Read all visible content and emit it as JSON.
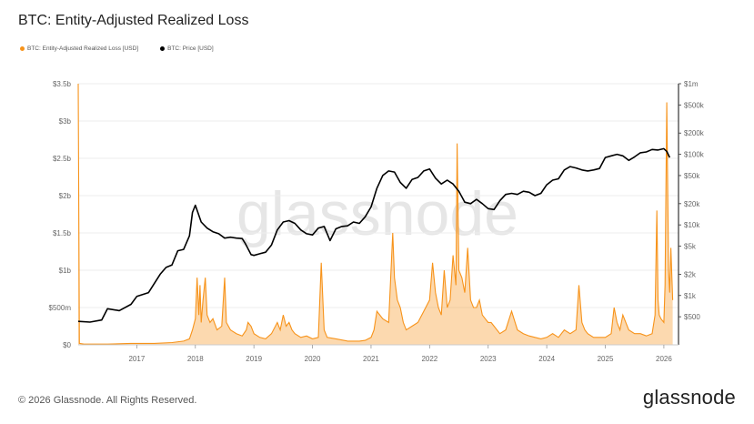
{
  "title": "BTC: Entity-Adjusted Realized Loss",
  "legend": {
    "loss": "BTC: Entity-Adjusted Realized Loss [USD]",
    "price": "BTC: Price [USD]"
  },
  "watermark": "glassnode",
  "footer": {
    "copyright": "© 2026 Glassnode. All Rights Reserved.",
    "brand": "glassnode"
  },
  "colors": {
    "loss": "#f7931a",
    "price": "#000000",
    "grid": "#eeeeee"
  },
  "chart_data": {
    "type": "line",
    "title": "BTC: Entity-Adjusted Realized Loss",
    "x_range": [
      2016.0,
      2026.25
    ],
    "x_ticks": [
      "2017",
      "2018",
      "2019",
      "2020",
      "2021",
      "2022",
      "2023",
      "2024",
      "2025",
      "2026"
    ],
    "left_axis": {
      "ylim": [
        0,
        3.5
      ],
      "unit": "billion USD",
      "ticks": [
        0,
        0.5,
        1,
        1.5,
        2,
        2.5,
        3,
        3.5
      ],
      "tick_labels": [
        "$0",
        "$500m",
        "$1b",
        "$1.5b",
        "$2b",
        "$2.5b",
        "$3b",
        "$3.5b"
      ]
    },
    "right_axis": {
      "scale": "log",
      "ylim": [
        200,
        1000000
      ],
      "ticks": [
        500,
        1000,
        2000,
        5000,
        10000,
        20000,
        50000,
        100000,
        200000,
        500000,
        1000000
      ],
      "tick_labels": [
        "$500",
        "$1k",
        "$2k",
        "$5k",
        "$10k",
        "$20k",
        "$50k",
        "$100k",
        "$200k",
        "$500k",
        "$1m"
      ]
    },
    "series": [
      {
        "name": "BTC: Entity-Adjusted Realized Loss [USD]",
        "axis": "left",
        "x": [
          2016.0,
          2016.02,
          2016.1,
          2016.5,
          2016.9,
          2017.3,
          2017.6,
          2017.8,
          2017.9,
          2017.95,
          2018.0,
          2018.03,
          2018.06,
          2018.08,
          2018.1,
          2018.13,
          2018.17,
          2018.2,
          2018.25,
          2018.3,
          2018.37,
          2018.45,
          2018.5,
          2018.53,
          2018.6,
          2018.7,
          2018.8,
          2018.87,
          2018.9,
          2018.95,
          2019.0,
          2019.1,
          2019.2,
          2019.3,
          2019.4,
          2019.45,
          2019.5,
          2019.55,
          2019.6,
          2019.65,
          2019.7,
          2019.8,
          2019.9,
          2020.0,
          2020.1,
          2020.15,
          2020.2,
          2020.25,
          2020.4,
          2020.6,
          2020.8,
          2020.9,
          2021.0,
          2021.05,
          2021.1,
          2021.2,
          2021.3,
          2021.37,
          2021.4,
          2021.45,
          2021.5,
          2021.55,
          2021.6,
          2021.7,
          2021.8,
          2021.9,
          2022.0,
          2022.05,
          2022.1,
          2022.15,
          2022.2,
          2022.25,
          2022.3,
          2022.35,
          2022.4,
          2022.45,
          2022.47,
          2022.5,
          2022.55,
          2022.6,
          2022.65,
          2022.7,
          2022.75,
          2022.8,
          2022.85,
          2022.9,
          2022.95,
          2023.0,
          2023.05,
          2023.1,
          2023.2,
          2023.3,
          2023.4,
          2023.5,
          2023.6,
          2023.7,
          2023.8,
          2023.9,
          2024.0,
          2024.1,
          2024.2,
          2024.3,
          2024.4,
          2024.5,
          2024.55,
          2024.6,
          2024.65,
          2024.7,
          2024.8,
          2024.9,
          2025.0,
          2025.1,
          2025.15,
          2025.2,
          2025.25,
          2025.3,
          2025.4,
          2025.5,
          2025.6,
          2025.7,
          2025.8,
          2025.85,
          2025.88,
          2025.9,
          2025.92,
          2025.95,
          2026.0,
          2026.02,
          2026.05,
          2026.08,
          2026.1,
          2026.12,
          2026.15
        ],
        "y": [
          3.5,
          0.02,
          0.01,
          0.01,
          0.02,
          0.02,
          0.03,
          0.05,
          0.08,
          0.2,
          0.35,
          0.9,
          0.4,
          0.8,
          0.3,
          0.6,
          0.9,
          0.4,
          0.3,
          0.35,
          0.2,
          0.25,
          0.9,
          0.3,
          0.2,
          0.15,
          0.12,
          0.2,
          0.3,
          0.25,
          0.15,
          0.1,
          0.08,
          0.15,
          0.3,
          0.2,
          0.4,
          0.25,
          0.3,
          0.2,
          0.15,
          0.1,
          0.12,
          0.08,
          0.1,
          1.1,
          0.2,
          0.1,
          0.08,
          0.05,
          0.05,
          0.06,
          0.1,
          0.2,
          0.45,
          0.35,
          0.3,
          1.5,
          0.9,
          0.6,
          0.5,
          0.3,
          0.2,
          0.25,
          0.3,
          0.45,
          0.6,
          1.1,
          0.7,
          0.5,
          0.4,
          1.0,
          0.5,
          0.6,
          1.2,
          0.8,
          2.7,
          1.0,
          0.9,
          0.7,
          1.3,
          0.6,
          0.5,
          0.5,
          0.6,
          0.4,
          0.35,
          0.3,
          0.3,
          0.25,
          0.15,
          0.2,
          0.45,
          0.2,
          0.15,
          0.12,
          0.1,
          0.08,
          0.1,
          0.15,
          0.1,
          0.2,
          0.15,
          0.2,
          0.8,
          0.3,
          0.2,
          0.15,
          0.1,
          0.1,
          0.1,
          0.15,
          0.5,
          0.3,
          0.2,
          0.4,
          0.2,
          0.15,
          0.15,
          0.12,
          0.15,
          0.4,
          1.8,
          0.6,
          0.4,
          0.35,
          0.3,
          0.8,
          3.25,
          1.0,
          0.7,
          1.3,
          0.6
        ]
      },
      {
        "name": "BTC: Price [USD]",
        "axis": "right",
        "x": [
          2016.0,
          2016.2,
          2016.4,
          2016.5,
          2016.7,
          2016.9,
          2017.0,
          2017.2,
          2017.4,
          2017.5,
          2017.6,
          2017.7,
          2017.8,
          2017.9,
          2017.95,
          2018.0,
          2018.1,
          2018.2,
          2018.3,
          2018.4,
          2018.5,
          2018.6,
          2018.7,
          2018.8,
          2018.85,
          2018.95,
          2019.0,
          2019.1,
          2019.2,
          2019.3,
          2019.4,
          2019.5,
          2019.6,
          2019.7,
          2019.8,
          2019.9,
          2020.0,
          2020.1,
          2020.2,
          2020.3,
          2020.4,
          2020.5,
          2020.6,
          2020.7,
          2020.8,
          2020.9,
          2021.0,
          2021.1,
          2021.2,
          2021.3,
          2021.4,
          2021.5,
          2021.6,
          2021.7,
          2021.8,
          2021.9,
          2022.0,
          2022.1,
          2022.2,
          2022.3,
          2022.4,
          2022.5,
          2022.6,
          2022.7,
          2022.8,
          2022.9,
          2023.0,
          2023.1,
          2023.2,
          2023.3,
          2023.4,
          2023.5,
          2023.6,
          2023.7,
          2023.8,
          2023.9,
          2024.0,
          2024.1,
          2024.2,
          2024.3,
          2024.4,
          2024.5,
          2024.6,
          2024.7,
          2024.8,
          2024.9,
          2025.0,
          2025.1,
          2025.2,
          2025.3,
          2025.4,
          2025.5,
          2025.6,
          2025.7,
          2025.8,
          2025.9,
          2026.0,
          2026.05,
          2026.1
        ],
        "y": [
          430,
          420,
          450,
          650,
          610,
          750,
          970,
          1100,
          2000,
          2500,
          2700,
          4300,
          4500,
          7000,
          15000,
          19000,
          11000,
          9000,
          8000,
          7500,
          6500,
          6700,
          6500,
          6400,
          5500,
          3800,
          3700,
          3900,
          4100,
          5200,
          8500,
          11000,
          11500,
          10500,
          8500,
          7500,
          7200,
          9000,
          9500,
          6000,
          8800,
          9500,
          9700,
          11000,
          10500,
          13000,
          18000,
          33000,
          50000,
          58000,
          56000,
          40000,
          33000,
          44000,
          47000,
          58000,
          62000,
          46000,
          38000,
          43000,
          38000,
          30000,
          21000,
          20000,
          23000,
          20000,
          17000,
          16500,
          22000,
          27000,
          28000,
          27000,
          30000,
          29000,
          26000,
          28000,
          37000,
          43000,
          45000,
          60000,
          67000,
          64000,
          60000,
          58000,
          60000,
          63000,
          90000,
          95000,
          100000,
          95000,
          82000,
          92000,
          105000,
          108000,
          117000,
          115000,
          120000,
          110000,
          90000
        ]
      }
    ]
  }
}
